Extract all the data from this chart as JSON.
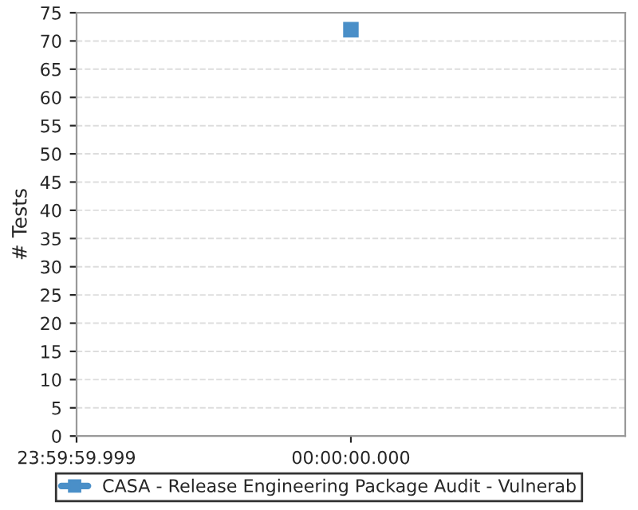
{
  "chart_data": {
    "type": "line",
    "ylabel": "# Tests",
    "categories": [
      "23:59:59.999",
      "00:00:00.000",
      null
    ],
    "series": [
      {
        "name": "CASA - Release Engineering Package Audit - Vulnerab",
        "color": "#4a8fc8",
        "values": [
          null,
          72,
          null
        ]
      }
    ],
    "ylim": [
      0,
      75
    ],
    "yticks": [
      0,
      5,
      10,
      15,
      20,
      25,
      30,
      35,
      40,
      45,
      50,
      55,
      60,
      65,
      70,
      75
    ],
    "grid": "y",
    "legend": "bottom",
    "marker": "square"
  }
}
